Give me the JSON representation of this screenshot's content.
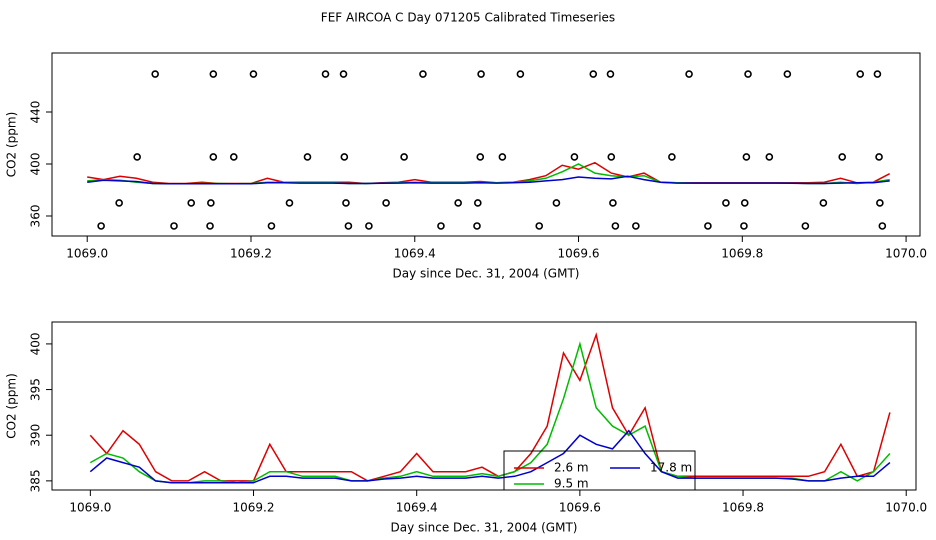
{
  "title": "FEF AIRCOA C  Day 071205  Calibrated Timeseries",
  "chart_data": [
    {
      "type": "line",
      "xlabel": "Day since Dec. 31, 2004 (GMT)",
      "ylabel": "CO2 (ppm)",
      "xlim": [
        1068.957,
        1070.017
      ],
      "ylim": [
        344.6,
        485.4
      ],
      "xticks": [
        {
          "value": 1069,
          "label": "1069.0"
        },
        1069.2,
        1069.4,
        1069.6,
        1069.8,
        {
          "value": 1070,
          "label": "1070.0"
        }
      ],
      "yticks": [
        360,
        400,
        440
      ],
      "x": [
        1069.0,
        1069.02,
        1069.04,
        1069.06,
        1069.08,
        1069.1,
        1069.12,
        1069.14,
        1069.16,
        1069.18,
        1069.2,
        1069.22,
        1069.24,
        1069.26,
        1069.28,
        1069.3,
        1069.32,
        1069.34,
        1069.36,
        1069.38,
        1069.4,
        1069.42,
        1069.44,
        1069.46,
        1069.48,
        1069.5,
        1069.52,
        1069.54,
        1069.56,
        1069.58,
        1069.6,
        1069.62,
        1069.64,
        1069.66,
        1069.68,
        1069.7,
        1069.72,
        1069.74,
        1069.76,
        1069.78,
        1069.8,
        1069.82,
        1069.84,
        1069.86,
        1069.88,
        1069.9,
        1069.92,
        1069.94,
        1069.96,
        1069.98
      ],
      "series": [
        {
          "color": "#dd0000",
          "values": [
            390,
            388,
            390.5,
            389,
            386,
            385,
            385,
            386,
            385,
            385,
            385,
            389,
            386,
            386,
            386,
            386,
            386,
            385,
            385.5,
            386,
            388,
            386,
            386,
            386,
            386.5,
            385.5,
            386,
            388,
            391,
            399,
            396,
            401,
            393,
            390,
            393,
            386,
            385.5,
            385.5,
            385.5,
            385.5,
            385.5,
            385.5,
            385.5,
            385.5,
            385.5,
            386,
            389,
            385.5,
            386,
            392.5
          ]
        },
        {
          "color": "#00bb00",
          "values": [
            387,
            388,
            387.5,
            386,
            385,
            384.8,
            384.8,
            385,
            385,
            384.8,
            385,
            386,
            386,
            385.5,
            385.5,
            385.5,
            385,
            385,
            385.3,
            385.5,
            386,
            385.5,
            385.5,
            385.5,
            385.8,
            385.5,
            386,
            387,
            389,
            394,
            400,
            393,
            391,
            390,
            391,
            386,
            385.5,
            385.3,
            385.3,
            385.3,
            385.3,
            385.3,
            385.3,
            385.3,
            385,
            385,
            386,
            385,
            386,
            388
          ]
        },
        {
          "color": "#0000cc",
          "values": [
            386,
            387.5,
            387,
            386.5,
            385,
            384.8,
            384.8,
            384.8,
            384.8,
            384.8,
            384.8,
            385.5,
            385.5,
            385.3,
            385.3,
            385.3,
            385,
            385,
            385.2,
            385.3,
            385.5,
            385.3,
            385.3,
            385.3,
            385.5,
            385.3,
            385.5,
            386,
            387,
            388,
            390,
            389,
            388.5,
            390.5,
            388,
            386,
            385.3,
            385.3,
            385.3,
            385.3,
            385.3,
            385.3,
            385.3,
            385.2,
            385,
            385,
            385.3,
            385.5,
            385.5,
            387
          ]
        }
      ],
      "scatter": {
        "x": [
          1069.083,
          1069.154,
          1069.203,
          1069.291,
          1069.313,
          1069.41,
          1069.481,
          1069.529,
          1069.618,
          1069.639,
          1069.735,
          1069.807,
          1069.855,
          1069.944,
          1069.965,
          1069.061,
          1069.154,
          1069.179,
          1069.269,
          1069.314,
          1069.387,
          1069.48,
          1069.507,
          1069.595,
          1069.64,
          1069.714,
          1069.805,
          1069.833,
          1069.922,
          1069.967,
          1069.039,
          1069.127,
          1069.151,
          1069.247,
          1069.316,
          1069.365,
          1069.453,
          1069.477,
          1069.573,
          1069.642,
          1069.78,
          1069.803,
          1069.899,
          1069.968,
          1069.017,
          1069.106,
          1069.15,
          1069.225,
          1069.319,
          1069.344,
          1069.432,
          1069.476,
          1069.552,
          1069.645,
          1069.67,
          1069.758,
          1069.802,
          1069.877,
          1069.971
        ],
        "values": [
          469.2,
          469.2,
          469.2,
          469.2,
          469.2,
          469.2,
          469.2,
          469.2,
          469.2,
          469.2,
          469.2,
          469.2,
          469.2,
          469.2,
          469.2,
          405.4,
          405.4,
          405.4,
          405.4,
          405.4,
          405.4,
          405.4,
          405.4,
          405.4,
          405.4,
          405.4,
          405.4,
          405.4,
          405.4,
          405.4,
          370,
          370,
          370,
          370,
          370,
          370,
          370,
          370,
          370,
          370,
          370,
          370,
          370,
          370,
          352.3,
          352.3,
          352.3,
          352.3,
          352.3,
          352.3,
          352.3,
          352.3,
          352.3,
          352.3,
          352.3,
          352.3,
          352.3,
          352.3,
          352.3
        ]
      }
    },
    {
      "type": "line",
      "xlabel": "Day since Dec. 31, 2004 (GMT)",
      "ylabel": "CO2 (ppm)",
      "xlim": [
        1068.953,
        1070.012
      ],
      "ylim": [
        384.0,
        402.4
      ],
      "xticks": [
        {
          "value": 1069,
          "label": "1069.0"
        },
        1069.2,
        1069.4,
        1069.6,
        1069.8,
        {
          "value": 1070,
          "label": "1070.0"
        }
      ],
      "yticks": [
        385,
        390,
        395,
        400
      ],
      "legend": "bottom-center",
      "x": [
        1069.0,
        1069.02,
        1069.04,
        1069.06,
        1069.08,
        1069.1,
        1069.12,
        1069.14,
        1069.16,
        1069.18,
        1069.2,
        1069.22,
        1069.24,
        1069.26,
        1069.28,
        1069.3,
        1069.32,
        1069.34,
        1069.36,
        1069.38,
        1069.4,
        1069.42,
        1069.44,
        1069.46,
        1069.48,
        1069.5,
        1069.52,
        1069.54,
        1069.56,
        1069.58,
        1069.6,
        1069.62,
        1069.64,
        1069.66,
        1069.68,
        1069.7,
        1069.72,
        1069.74,
        1069.76,
        1069.78,
        1069.8,
        1069.82,
        1069.84,
        1069.86,
        1069.88,
        1069.9,
        1069.92,
        1069.94,
        1069.96,
        1069.98
      ],
      "series": [
        {
          "name": "2.6 m",
          "color": "#dd0000",
          "values": [
            390,
            388,
            390.5,
            389,
            386,
            385,
            385,
            386,
            385,
            385,
            385,
            389,
            386,
            386,
            386,
            386,
            386,
            385,
            385.5,
            386,
            388,
            386,
            386,
            386,
            386.5,
            385.5,
            386,
            388,
            391,
            399,
            396,
            401,
            393,
            390,
            393,
            386,
            385.5,
            385.5,
            385.5,
            385.5,
            385.5,
            385.5,
            385.5,
            385.5,
            385.5,
            386,
            389,
            385.5,
            386,
            392.5
          ]
        },
        {
          "name": "9.5 m",
          "color": "#00bb00",
          "values": [
            387,
            388,
            387.5,
            386,
            385,
            384.8,
            384.8,
            385,
            385,
            384.8,
            385,
            386,
            386,
            385.5,
            385.5,
            385.5,
            385,
            385,
            385.3,
            385.5,
            386,
            385.5,
            385.5,
            385.5,
            385.8,
            385.5,
            386,
            387,
            389,
            394,
            400,
            393,
            391,
            390,
            391,
            386,
            385.5,
            385.3,
            385.3,
            385.3,
            385.3,
            385.3,
            385.3,
            385.3,
            385,
            385,
            386,
            385,
            386,
            388
          ]
        },
        {
          "name": "17.8 m",
          "color": "#0000cc",
          "values": [
            386,
            387.5,
            387,
            386.5,
            385,
            384.8,
            384.8,
            384.8,
            384.8,
            384.8,
            384.8,
            385.5,
            385.5,
            385.3,
            385.3,
            385.3,
            385,
            385,
            385.2,
            385.3,
            385.5,
            385.3,
            385.3,
            385.3,
            385.5,
            385.3,
            385.5,
            386,
            387,
            388,
            390,
            389,
            388.5,
            390.5,
            388,
            386,
            385.3,
            385.3,
            385.3,
            385.3,
            385.3,
            385.3,
            385.3,
            385.2,
            385,
            385,
            385.3,
            385.5,
            385.5,
            387
          ]
        }
      ]
    }
  ]
}
